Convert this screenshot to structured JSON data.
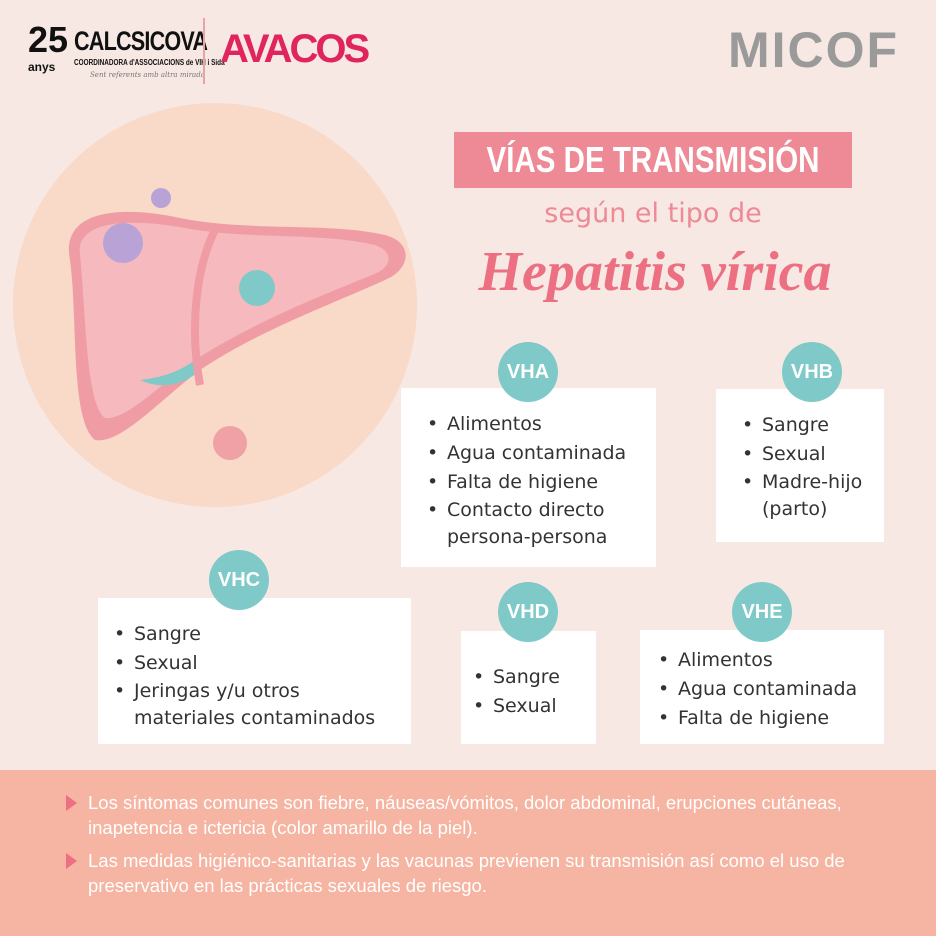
{
  "header": {
    "logo_calcsicova": {
      "years": "25",
      "years_label": "anys",
      "name": "CALCSICOVA",
      "subtitle": "COORDINADORA d'ASSOCIACIONS de VIH i Sida",
      "tagline": "Sent referents amb altra mirada"
    },
    "logo_avacos": "AVACOS",
    "logo_micof": "MICOF"
  },
  "title": {
    "line1": "VÍAS DE TRANSMISIÓN",
    "line2": "según el tipo de",
    "line3": "Hepatitis vírica"
  },
  "types": [
    {
      "label": "VHA",
      "items": [
        "Alimentos",
        "Agua contaminada",
        "Falta de higiene",
        "Contacto directo persona-persona"
      ]
    },
    {
      "label": "VHB",
      "items": [
        "Sangre",
        "Sexual",
        "Madre-hijo (parto)"
      ]
    },
    {
      "label": "VHC",
      "items": [
        "Sangre",
        "Sexual",
        "Jeringas y/u otros materiales contaminados"
      ]
    },
    {
      "label": "VHD",
      "items": [
        "Sangre",
        "Sexual"
      ]
    },
    {
      "label": "VHE",
      "items": [
        "Alimentos",
        "Agua contaminada",
        "Falta de higiene"
      ]
    }
  ],
  "notes": [
    "Los síntomas comunes son fiebre, náuseas/vómitos, dolor abdominal, erupciones cutáneas, inapetencia e ictericia (color amarillo de la piel).",
    "Las medidas higiénico-sanitarias y las vacunas previenen su transmisión así como el uso de preservativo en las prácticas sexuales de riesgo."
  ],
  "colors": {
    "background": "#f7e8e3",
    "accent_pink": "#ee8a95",
    "badge_teal": "#7fcac8",
    "band": "#f5b5a2"
  }
}
